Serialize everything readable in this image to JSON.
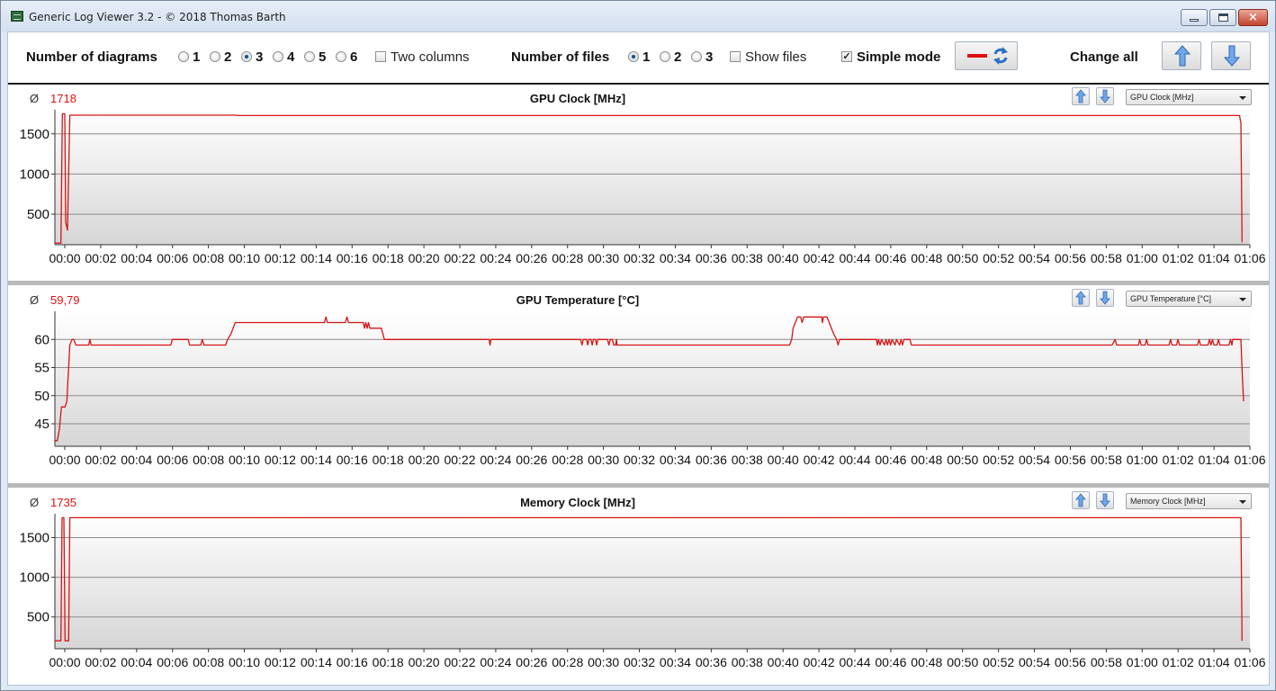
{
  "window": {
    "title": "Generic Log Viewer 3.2 - © 2018 Thomas Barth",
    "close_glyph": "×"
  },
  "toolbar": {
    "diagrams_label": "Number of diagrams",
    "diagram_options": [
      "1",
      "2",
      "3",
      "4",
      "5",
      "6"
    ],
    "diagrams_selected": "3",
    "two_columns_label": "Two columns",
    "two_columns_checked": false,
    "files_label": "Number of files",
    "file_options": [
      "1",
      "2",
      "3"
    ],
    "files_selected": "1",
    "show_files_label": "Show files",
    "show_files_checked": false,
    "simple_mode_label": "Simple mode",
    "simple_mode_checked": true,
    "check_glyph": "✓",
    "change_all_label": "Change all",
    "line_color": "#e01010",
    "icons": [
      "red-line-icon",
      "refresh-icon",
      "arrow-up-icon",
      "arrow-down-icon"
    ]
  },
  "avg_symbol": "Ø",
  "line_color": "#d81414",
  "chart_data": [
    {
      "type": "line",
      "title": "GPU Clock [MHz]",
      "average": "1718",
      "dropdown": "GPU Clock [MHz]",
      "ylim": [
        120,
        1800
      ],
      "yticks": [
        500,
        1000,
        1500
      ],
      "x_unit": "mm:ss",
      "xlim": [
        0,
        3990
      ],
      "xtick_labels": [
        "00:00",
        "00:02",
        "00:04",
        "00:06",
        "00:08",
        "00:10",
        "00:12",
        "00:14",
        "00:16",
        "00:18",
        "00:20",
        "00:22",
        "00:24",
        "00:26",
        "00:28",
        "00:30",
        "00:32",
        "00:34",
        "00:36",
        "00:38",
        "00:40",
        "00:42",
        "00:44",
        "00:46",
        "00:48",
        "00:50",
        "00:52",
        "00:54",
        "00:56",
        "00:58",
        "01:00",
        "01:02",
        "01:04",
        "01:06"
      ],
      "series": [
        {
          "points": [
            [
              0,
              140
            ],
            [
              20,
              140
            ],
            [
              25,
              1750
            ],
            [
              33,
              1750
            ],
            [
              36,
              400
            ],
            [
              42,
              300
            ],
            [
              50,
              1733
            ],
            [
              600,
              1733
            ],
            [
              610,
              1728
            ],
            [
              3955,
              1728
            ],
            [
              3960,
              1640
            ],
            [
              3964,
              150
            ]
          ]
        }
      ]
    },
    {
      "type": "line",
      "title": "GPU Temperature [°C]",
      "average": "59,79",
      "dropdown": "GPU Temperature [°C]",
      "ylim": [
        41,
        65
      ],
      "yticks": [
        45,
        50,
        55,
        60
      ],
      "x_unit": "mm:ss",
      "xlim": [
        0,
        3990
      ],
      "xtick_labels": [
        "00:00",
        "00:02",
        "00:04",
        "00:06",
        "00:08",
        "00:10",
        "00:12",
        "00:14",
        "00:16",
        "00:18",
        "00:20",
        "00:22",
        "00:24",
        "00:26",
        "00:28",
        "00:30",
        "00:32",
        "00:34",
        "00:36",
        "00:38",
        "00:40",
        "00:42",
        "00:44",
        "00:46",
        "00:48",
        "00:50",
        "00:52",
        "00:54",
        "00:56",
        "00:58",
        "01:00",
        "01:02",
        "01:04",
        "01:06"
      ],
      "series": [
        {
          "points": [
            [
              0,
              42
            ],
            [
              8,
              42
            ],
            [
              15,
              44
            ],
            [
              22,
              48
            ],
            [
              34,
              48
            ],
            [
              40,
              49
            ],
            [
              50,
              59
            ],
            [
              57,
              60
            ],
            [
              63,
              60
            ],
            [
              70,
              59
            ],
            [
              113,
              59
            ],
            [
              117,
              60
            ],
            [
              121,
              59
            ],
            [
              387,
              59
            ],
            [
              392,
              60
            ],
            [
              445,
              60
            ],
            [
              450,
              59
            ],
            [
              487,
              59
            ],
            [
              492,
              60
            ],
            [
              498,
              59
            ],
            [
              570,
              59
            ],
            [
              577,
              60
            ],
            [
              588,
              61
            ],
            [
              595,
              62
            ],
            [
              602,
              63
            ],
            [
              900,
              63
            ],
            [
              905,
              64
            ],
            [
              910,
              63
            ],
            [
              970,
              63
            ],
            [
              975,
              64
            ],
            [
              980,
              63
            ],
            [
              1030,
              63
            ],
            [
              1034,
              62
            ],
            [
              1038,
              63
            ],
            [
              1043,
              62
            ],
            [
              1047,
              63
            ],
            [
              1052,
              62
            ],
            [
              1090,
              62
            ],
            [
              1100,
              60
            ],
            [
              1450,
              60
            ],
            [
              1453,
              59
            ],
            [
              1456,
              60
            ],
            [
              1755,
              60
            ],
            [
              1760,
              59
            ],
            [
              1764,
              60
            ],
            [
              1775,
              60
            ],
            [
              1779,
              59
            ],
            [
              1783,
              60
            ],
            [
              1790,
              60
            ],
            [
              1794,
              59
            ],
            [
              1798,
              60
            ],
            [
              1805,
              60
            ],
            [
              1809,
              59
            ],
            [
              1813,
              60
            ],
            [
              1845,
              60
            ],
            [
              1850,
              59
            ],
            [
              1854,
              60
            ],
            [
              1861,
              60
            ],
            [
              1866,
              59
            ],
            [
              1872,
              59
            ],
            [
              1875,
              60
            ],
            [
              1877,
              59
            ],
            [
              2453,
              59
            ],
            [
              2460,
              60
            ],
            [
              2465,
              62
            ],
            [
              2472,
              63
            ],
            [
              2480,
              64
            ],
            [
              2490,
              64
            ],
            [
              2495,
              63
            ],
            [
              2500,
              64
            ],
            [
              2560,
              64
            ],
            [
              2563,
              63
            ],
            [
              2566,
              64
            ],
            [
              2578,
              64
            ],
            [
              2600,
              61
            ],
            [
              2610,
              60
            ],
            [
              2615,
              59
            ],
            [
              2620,
              60
            ],
            [
              2743,
              60
            ],
            [
              2746,
              59
            ],
            [
              2750,
              60
            ],
            [
              2755,
              59
            ],
            [
              2760,
              60
            ],
            [
              2770,
              59
            ],
            [
              2775,
              60
            ],
            [
              2780,
              59
            ],
            [
              2785,
              60
            ],
            [
              2790,
              59
            ],
            [
              2795,
              60
            ],
            [
              2805,
              59
            ],
            [
              2810,
              60
            ],
            [
              2820,
              59
            ],
            [
              2825,
              60
            ],
            [
              2830,
              59
            ],
            [
              2835,
              60
            ],
            [
              2855,
              60
            ],
            [
              2860,
              59
            ],
            [
              3530,
              59
            ],
            [
              3540,
              60
            ],
            [
              3545,
              59
            ],
            [
              3618,
              59
            ],
            [
              3622,
              60
            ],
            [
              3627,
              59
            ],
            [
              3640,
              59
            ],
            [
              3645,
              60
            ],
            [
              3650,
              59
            ],
            [
              3720,
              59
            ],
            [
              3725,
              60
            ],
            [
              3730,
              59
            ],
            [
              3745,
              59
            ],
            [
              3750,
              60
            ],
            [
              3755,
              59
            ],
            [
              3815,
              59
            ],
            [
              3820,
              60
            ],
            [
              3825,
              59
            ],
            [
              3850,
              59
            ],
            [
              3855,
              60
            ],
            [
              3860,
              59
            ],
            [
              3865,
              60
            ],
            [
              3870,
              59
            ],
            [
              3880,
              59
            ],
            [
              3885,
              60
            ],
            [
              3890,
              59
            ],
            [
              3920,
              59
            ],
            [
              3925,
              60
            ],
            [
              3930,
              59
            ],
            [
              3933,
              60
            ],
            [
              3960,
              60
            ],
            [
              3965,
              53
            ],
            [
              3969,
              49
            ]
          ]
        }
      ]
    },
    {
      "type": "line",
      "title": "Memory Clock [MHz]",
      "average": "1735",
      "dropdown": "Memory Clock [MHz]",
      "ylim": [
        100,
        1800
      ],
      "yticks": [
        500,
        1000,
        1500
      ],
      "x_unit": "mm:ss",
      "xlim": [
        0,
        3990
      ],
      "xtick_labels": [
        "00:00",
        "00:02",
        "00:04",
        "00:06",
        "00:08",
        "00:10",
        "00:12",
        "00:14",
        "00:16",
        "00:18",
        "00:20",
        "00:22",
        "00:24",
        "00:26",
        "00:28",
        "00:30",
        "00:32",
        "00:34",
        "00:36",
        "00:38",
        "00:40",
        "00:42",
        "00:44",
        "00:46",
        "00:48",
        "00:50",
        "00:52",
        "00:54",
        "00:56",
        "00:58",
        "01:00",
        "01:02",
        "01:04",
        "01:06"
      ],
      "series": [
        {
          "points": [
            [
              0,
              200
            ],
            [
              20,
              200
            ],
            [
              24,
              1750
            ],
            [
              30,
              1750
            ],
            [
              34,
              200
            ],
            [
              46,
              200
            ],
            [
              50,
              1750
            ],
            [
              3960,
              1750
            ],
            [
              3964,
              200
            ]
          ]
        }
      ]
    }
  ]
}
